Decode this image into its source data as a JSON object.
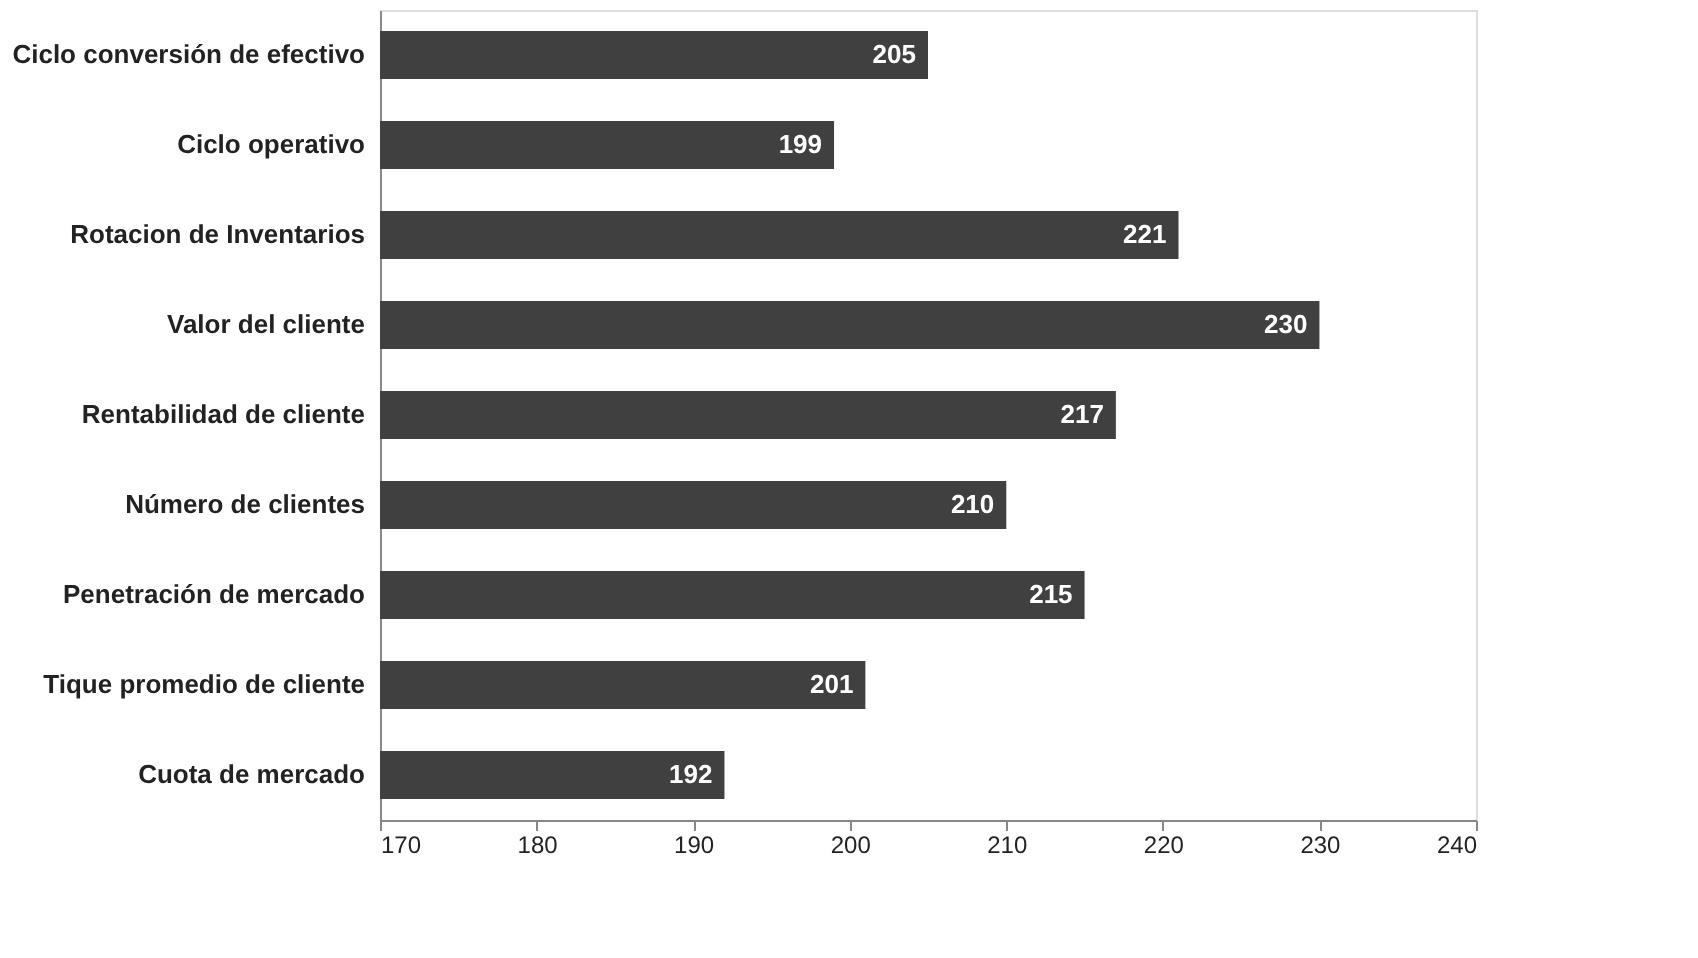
{
  "chart_data": {
    "type": "bar",
    "orientation": "horizontal",
    "categories": [
      "Ciclo conversión de efectivo",
      "Ciclo operativo",
      "Rotacion de Inventarios",
      "Valor del cliente",
      "Rentabilidad de cliente",
      "Número de clientes",
      "Penetración de mercado",
      "Tique promedio de cliente",
      "Cuota de mercado"
    ],
    "values": [
      205,
      199,
      221,
      230,
      217,
      210,
      215,
      201,
      192
    ],
    "color": "#404040",
    "data_labels": true,
    "xlim": [
      170,
      240
    ],
    "xticks": [
      170,
      180,
      190,
      200,
      210,
      220,
      230,
      240
    ],
    "grid": false
  }
}
